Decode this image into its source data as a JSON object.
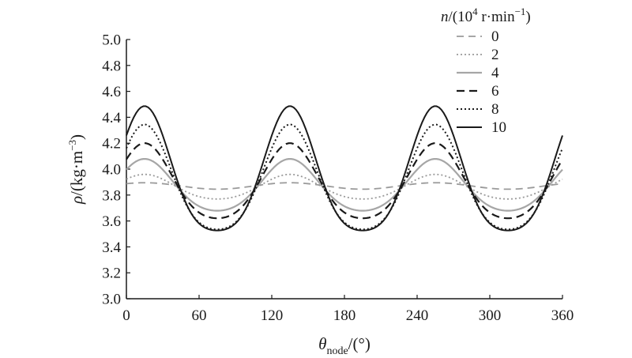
{
  "chart_data": {
    "type": "line",
    "title": "",
    "xlabel": {
      "symbol": "θ",
      "subscript": "node",
      "unit": "/(°)"
    },
    "ylabel": {
      "symbol": "ρ",
      "unit_prefix": "/(kg·m",
      "unit_sup": "−3",
      "unit_suffix": ")"
    },
    "xlim": [
      0,
      360
    ],
    "ylim": [
      3.0,
      5.0
    ],
    "xticks": [
      "0",
      "60",
      "120",
      "180",
      "240",
      "300",
      "360"
    ],
    "yticks": [
      "3.0",
      "3.2",
      "3.4",
      "3.6",
      "3.8",
      "4.0",
      "4.2",
      "4.4",
      "4.6",
      "4.8",
      "5.0"
    ],
    "grid": false,
    "legend": {
      "title_prefix": "n/(10",
      "title_sup": "4",
      "title_mid": " r·min",
      "title_sup2": "−1",
      "title_suffix": ")",
      "placement": "top-right"
    },
    "series": [
      {
        "name": "0",
        "color": "#9a9a9a",
        "dash": "9,6",
        "width": 1.8,
        "mean": 3.87,
        "amplitude": 0.025,
        "phase_deg": 15,
        "harm2": 0
      },
      {
        "name": "2",
        "color": "#9a9a9a",
        "dash": "2,3",
        "width": 1.8,
        "mean": 3.855,
        "amplitude": 0.095,
        "phase_deg": 15,
        "harm2": 0.1
      },
      {
        "name": "4",
        "color": "#a6a6a6",
        "dash": "",
        "width": 2.2,
        "mean": 3.855,
        "amplitude": 0.2,
        "phase_deg": 15,
        "harm2": 0.12
      },
      {
        "name": "6",
        "color": "#1a1a1a",
        "dash": "10,6",
        "width": 2.2,
        "mean": 3.87,
        "amplitude": 0.29,
        "phase_deg": 15,
        "harm2": 0.14
      },
      {
        "name": "8",
        "color": "#1a1a1a",
        "dash": "2,3",
        "width": 2.0,
        "mean": 3.875,
        "amplitude": 0.405,
        "phase_deg": 15,
        "harm2": 0.16
      },
      {
        "name": "10",
        "color": "#1a1a1a",
        "dash": "",
        "width": 2.0,
        "mean": 3.92,
        "amplitude": 0.48,
        "phase_deg": 15,
        "harm2": 0.18
      }
    ],
    "x_step": 2
  }
}
